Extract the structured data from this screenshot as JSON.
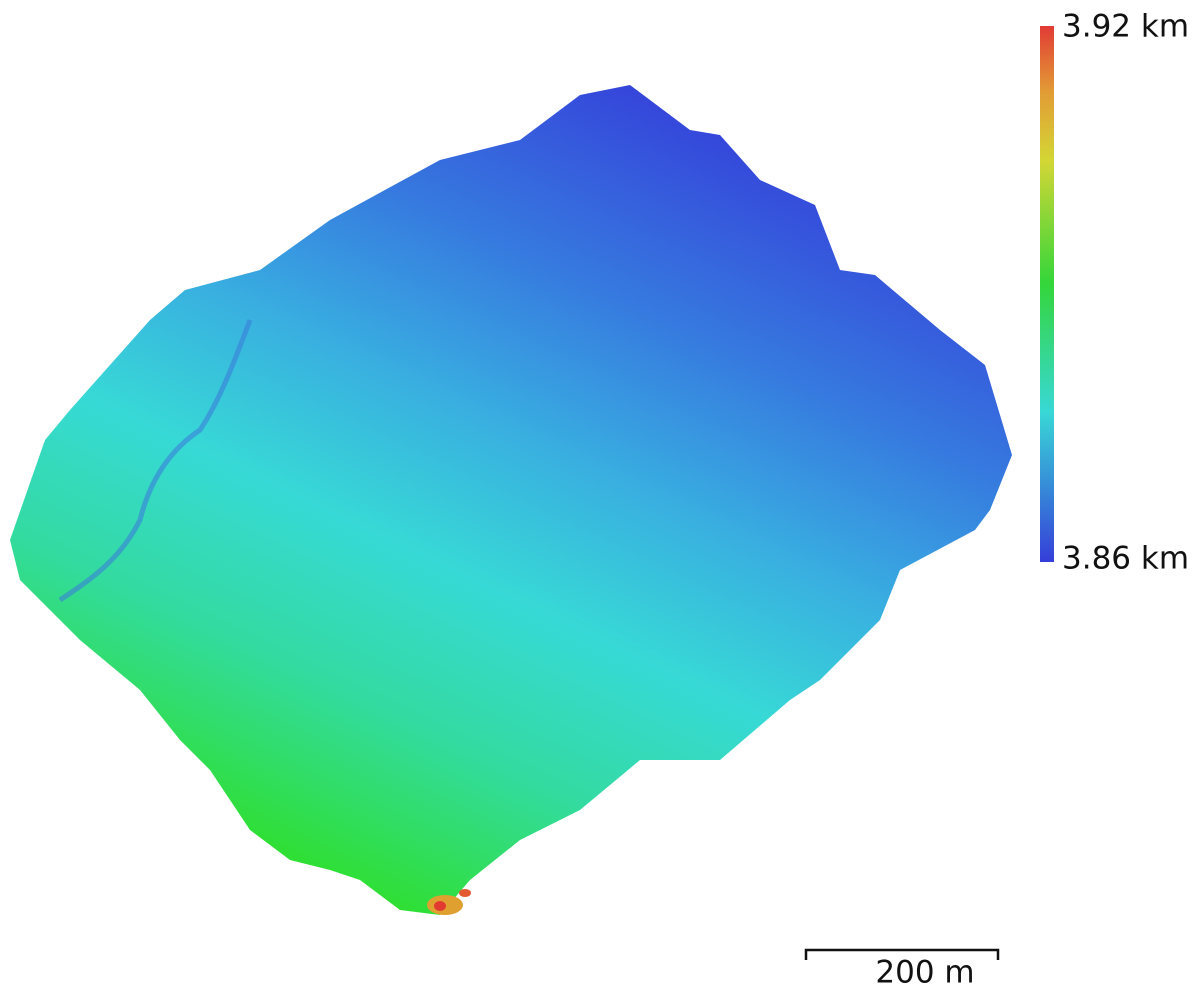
{
  "legend": {
    "max_label": "3.92 km",
    "min_label": "3.86 km"
  },
  "scale_bar": {
    "label": "200 m"
  }
}
